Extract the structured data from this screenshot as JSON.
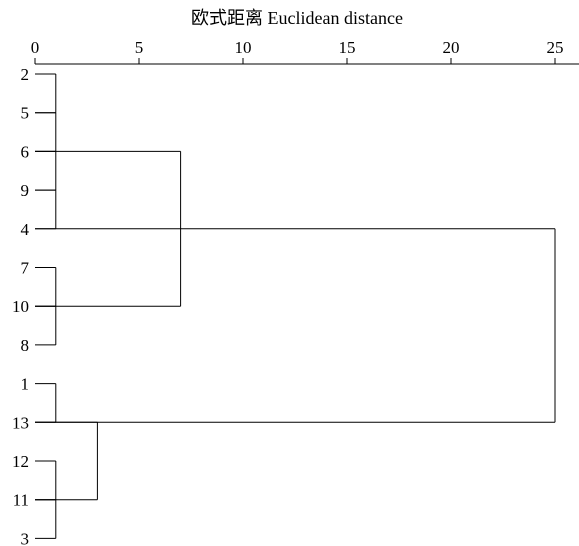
{
  "chart_data": {
    "type": "dendrogram",
    "title": "欧式距离 Euclidean distance",
    "x_axis": {
      "range": [
        0,
        25
      ],
      "ticks": [
        0,
        5,
        10,
        15,
        20,
        25
      ],
      "tick_labels": [
        "0",
        "5",
        "10",
        "15",
        "20",
        "25"
      ],
      "position": "top"
    },
    "leaves": [
      "2",
      "5",
      "6",
      "9",
      "4",
      "7",
      "10",
      "8",
      "1",
      "13",
      "12",
      "11",
      "3"
    ],
    "merges": [
      {
        "left": "leaf:2",
        "right": "leaf:5",
        "height": 1
      },
      {
        "left": "leaf:5",
        "right": "leaf:6",
        "height": 1
      },
      {
        "left": "leaf:6",
        "right": "leaf:9",
        "height": 1
      },
      {
        "left": "leaf:9",
        "right": "leaf:4",
        "height": 1
      },
      {
        "left": "leaf:7",
        "right": "leaf:10",
        "height": 1
      },
      {
        "left": "leaf:10",
        "right": "leaf:8",
        "height": 1
      },
      {
        "left": "leaf:1",
        "right": "leaf:13",
        "height": 1
      },
      {
        "left": "leaf:12",
        "right": "leaf:11",
        "height": 1
      },
      {
        "left": "leaf:11",
        "right": "leaf:3",
        "height": 1
      },
      {
        "left": "leaf:6",
        "right": "leaf:10",
        "height": 7
      },
      {
        "left": "leaf:13",
        "right": "leaf:11",
        "height": 3
      },
      {
        "left": "leaf:4",
        "right": "leaf:13",
        "height": 25
      }
    ]
  }
}
